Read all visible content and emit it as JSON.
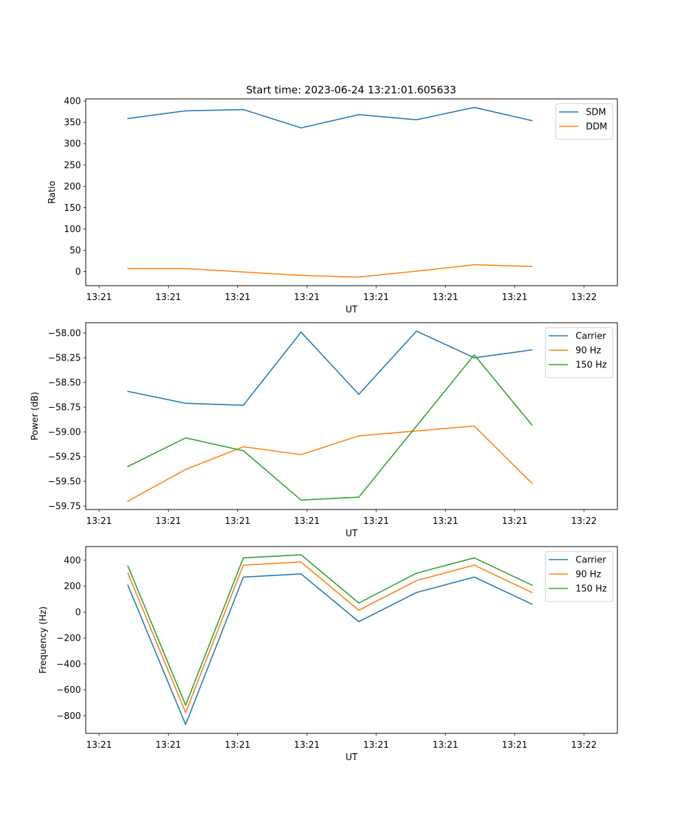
{
  "figure_title": "Start time: 2023-06-24 13:21:01.605633",
  "chart_data": [
    {
      "type": "line",
      "xlabel": "UT",
      "ylabel": "Ratio",
      "x_tick_labels": [
        "13:21",
        "13:21",
        "13:21",
        "13:21",
        "13:21",
        "13:21",
        "13:21",
        "13:22"
      ],
      "x_points": 8,
      "x_range": [
        -0.73,
        8.48
      ],
      "yticks": [
        0,
        50,
        100,
        150,
        200,
        250,
        300,
        350,
        400
      ],
      "ylim": [
        -33,
        405
      ],
      "legend_position": "upper right",
      "series": [
        {
          "name": "SDM",
          "color": "#1f77b4",
          "values": [
            359,
            377,
            380,
            337,
            368,
            356,
            385,
            354
          ]
        },
        {
          "name": "DDM",
          "color": "#ff7f0e",
          "values": [
            7,
            7,
            -1,
            -9,
            -13,
            1,
            16,
            12
          ]
        }
      ]
    },
    {
      "type": "line",
      "xlabel": "UT",
      "ylabel": "Power (dB)",
      "x_tick_labels": [
        "13:21",
        "13:21",
        "13:21",
        "13:21",
        "13:21",
        "13:21",
        "13:21",
        "13:22"
      ],
      "x_points": 8,
      "x_range": [
        -0.73,
        8.48
      ],
      "yticks": [
        -58.0,
        -58.25,
        -58.5,
        -58.75,
        -59.0,
        -59.25,
        -59.5,
        -59.75
      ],
      "ytick_labels": [
        "−58.00",
        "−58.25",
        "−58.50",
        "−58.75",
        "−59.00",
        "−59.25",
        "−59.50",
        "−59.75"
      ],
      "ylim": [
        -59.785,
        -57.895
      ],
      "legend_position": "upper right",
      "series": [
        {
          "name": "Carrier",
          "color": "#1f77b4",
          "values": [
            -58.59,
            -58.71,
            -58.73,
            -57.99,
            -58.62,
            -57.98,
            -58.25,
            -58.17
          ]
        },
        {
          "name": "90 Hz",
          "color": "#ff7f0e",
          "values": [
            -59.7,
            -59.38,
            -59.15,
            -59.23,
            -59.04,
            -58.99,
            -58.94,
            -59.52
          ]
        },
        {
          "name": "150 Hz",
          "color": "#2ca02c",
          "values": [
            -59.35,
            -59.06,
            -59.19,
            -59.69,
            -59.66,
            -58.94,
            -58.22,
            -58.93
          ]
        }
      ]
    },
    {
      "type": "line",
      "xlabel": "UT",
      "ylabel": "Frequency (Hz)",
      "x_tick_labels": [
        "13:21",
        "13:21",
        "13:21",
        "13:21",
        "13:21",
        "13:21",
        "13:21",
        "13:22"
      ],
      "x_points": 8,
      "x_range": [
        -0.73,
        8.48
      ],
      "yticks": [
        400,
        200,
        0,
        -200,
        -400,
        -600,
        -800
      ],
      "ytick_labels": [
        "400",
        "200",
        "0",
        "−200",
        "−400",
        "−600",
        "−800"
      ],
      "ylim": [
        -935,
        505
      ],
      "legend_position": "upper right",
      "series": [
        {
          "name": "Carrier",
          "color": "#1f77b4",
          "values": [
            207,
            -867,
            270,
            294,
            -74,
            151,
            270,
            61
          ]
        },
        {
          "name": "90 Hz",
          "color": "#ff7f0e",
          "values": [
            299,
            -775,
            362,
            386,
            14,
            243,
            362,
            151
          ]
        },
        {
          "name": "150 Hz",
          "color": "#2ca02c",
          "values": [
            355,
            -718,
            418,
            442,
            70,
            300,
            418,
            208
          ]
        }
      ]
    }
  ]
}
